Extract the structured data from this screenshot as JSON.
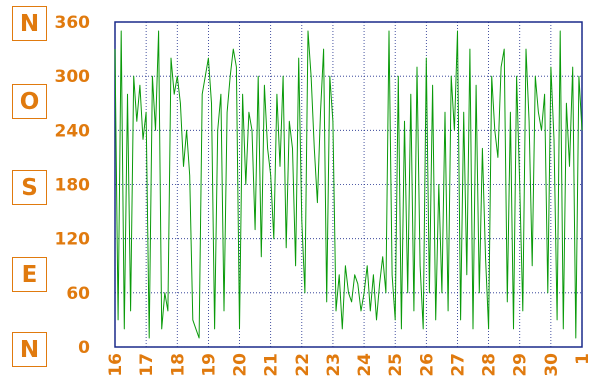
{
  "compass": [
    "N",
    "O",
    "S",
    "E",
    "N"
  ],
  "chart_data": {
    "type": "line",
    "title": "",
    "xlabel": "",
    "ylabel": "",
    "ylim": [
      0,
      360
    ],
    "yticks": [
      0,
      60,
      120,
      180,
      240,
      300,
      360
    ],
    "xlim": [
      0,
      15
    ],
    "x_tick_labels": [
      "16",
      "17",
      "18",
      "19",
      "20",
      "21",
      "22",
      "23",
      "24",
      "25",
      "26",
      "27",
      "28",
      "29",
      "30",
      "1"
    ],
    "grid": true,
    "colors": {
      "line": "#0a9a0a",
      "grid": "#1a2a8a",
      "axis_text": "#e07a0e"
    },
    "series": [
      {
        "name": "",
        "x": [
          0,
          0.1,
          0.2,
          0.3,
          0.4,
          0.5,
          0.6,
          0.7,
          0.8,
          0.9,
          1.0,
          1.1,
          1.2,
          1.3,
          1.4,
          1.5,
          1.6,
          1.7,
          1.8,
          1.9,
          2.0,
          2.1,
          2.2,
          2.3,
          2.4,
          2.5,
          2.6,
          2.7,
          2.8,
          2.9,
          3.0,
          3.1,
          3.2,
          3.3,
          3.4,
          3.5,
          3.6,
          3.7,
          3.8,
          3.9,
          4.0,
          4.1,
          4.2,
          4.3,
          4.4,
          4.5,
          4.6,
          4.7,
          4.8,
          4.9,
          5.0,
          5.1,
          5.2,
          5.3,
          5.4,
          5.5,
          5.6,
          5.7,
          5.8,
          5.9,
          6.0,
          6.1,
          6.2,
          6.3,
          6.4,
          6.5,
          6.6,
          6.7,
          6.8,
          6.9,
          7.0,
          7.1,
          7.2,
          7.3,
          7.4,
          7.5,
          7.6,
          7.7,
          7.8,
          7.9,
          8.0,
          8.1,
          8.2,
          8.3,
          8.4,
          8.5,
          8.6,
          8.7,
          8.8,
          8.9,
          9.0,
          9.1,
          9.2,
          9.3,
          9.4,
          9.5,
          9.6,
          9.7,
          9.8,
          9.9,
          10.0,
          10.1,
          10.2,
          10.3,
          10.4,
          10.5,
          10.6,
          10.7,
          10.8,
          10.9,
          11.0,
          11.1,
          11.2,
          11.3,
          11.4,
          11.5,
          11.6,
          11.7,
          11.8,
          11.9,
          12.0,
          12.1,
          12.2,
          12.3,
          12.4,
          12.5,
          12.6,
          12.7,
          12.8,
          12.9,
          13.0,
          13.1,
          13.2,
          13.3,
          13.4,
          13.5,
          13.6,
          13.7,
          13.8,
          13.9,
          14.0,
          14.1,
          14.2,
          14.3,
          14.4,
          14.5,
          14.6,
          14.7,
          14.8,
          14.9,
          15.0
        ],
        "y": [
          330,
          30,
          350,
          20,
          280,
          40,
          300,
          250,
          290,
          230,
          260,
          10,
          300,
          240,
          350,
          20,
          60,
          40,
          320,
          280,
          300,
          270,
          200,
          240,
          190,
          30,
          20,
          10,
          280,
          300,
          320,
          270,
          20,
          240,
          280,
          40,
          260,
          300,
          330,
          310,
          20,
          280,
          180,
          260,
          240,
          130,
          300,
          100,
          290,
          220,
          190,
          120,
          280,
          200,
          300,
          110,
          250,
          220,
          90,
          320,
          140,
          60,
          350,
          300,
          220,
          160,
          260,
          330,
          50,
          300,
          250,
          40,
          80,
          20,
          90,
          60,
          50,
          80,
          70,
          40,
          60,
          90,
          40,
          80,
          30,
          70,
          100,
          60,
          350,
          80,
          30,
          300,
          20,
          250,
          60,
          280,
          40,
          310,
          90,
          20,
          320,
          60,
          290,
          30,
          180,
          60,
          260,
          40,
          300,
          240,
          350,
          30,
          260,
          80,
          330,
          20,
          290,
          60,
          220,
          100,
          20,
          300,
          240,
          210,
          310,
          330,
          50,
          260,
          20,
          300,
          180,
          40,
          330,
          250,
          90,
          300,
          260,
          240,
          280,
          60,
          310,
          230,
          30,
          350,
          20,
          270,
          200,
          310,
          10,
          300,
          240
        ]
      }
    ]
  }
}
